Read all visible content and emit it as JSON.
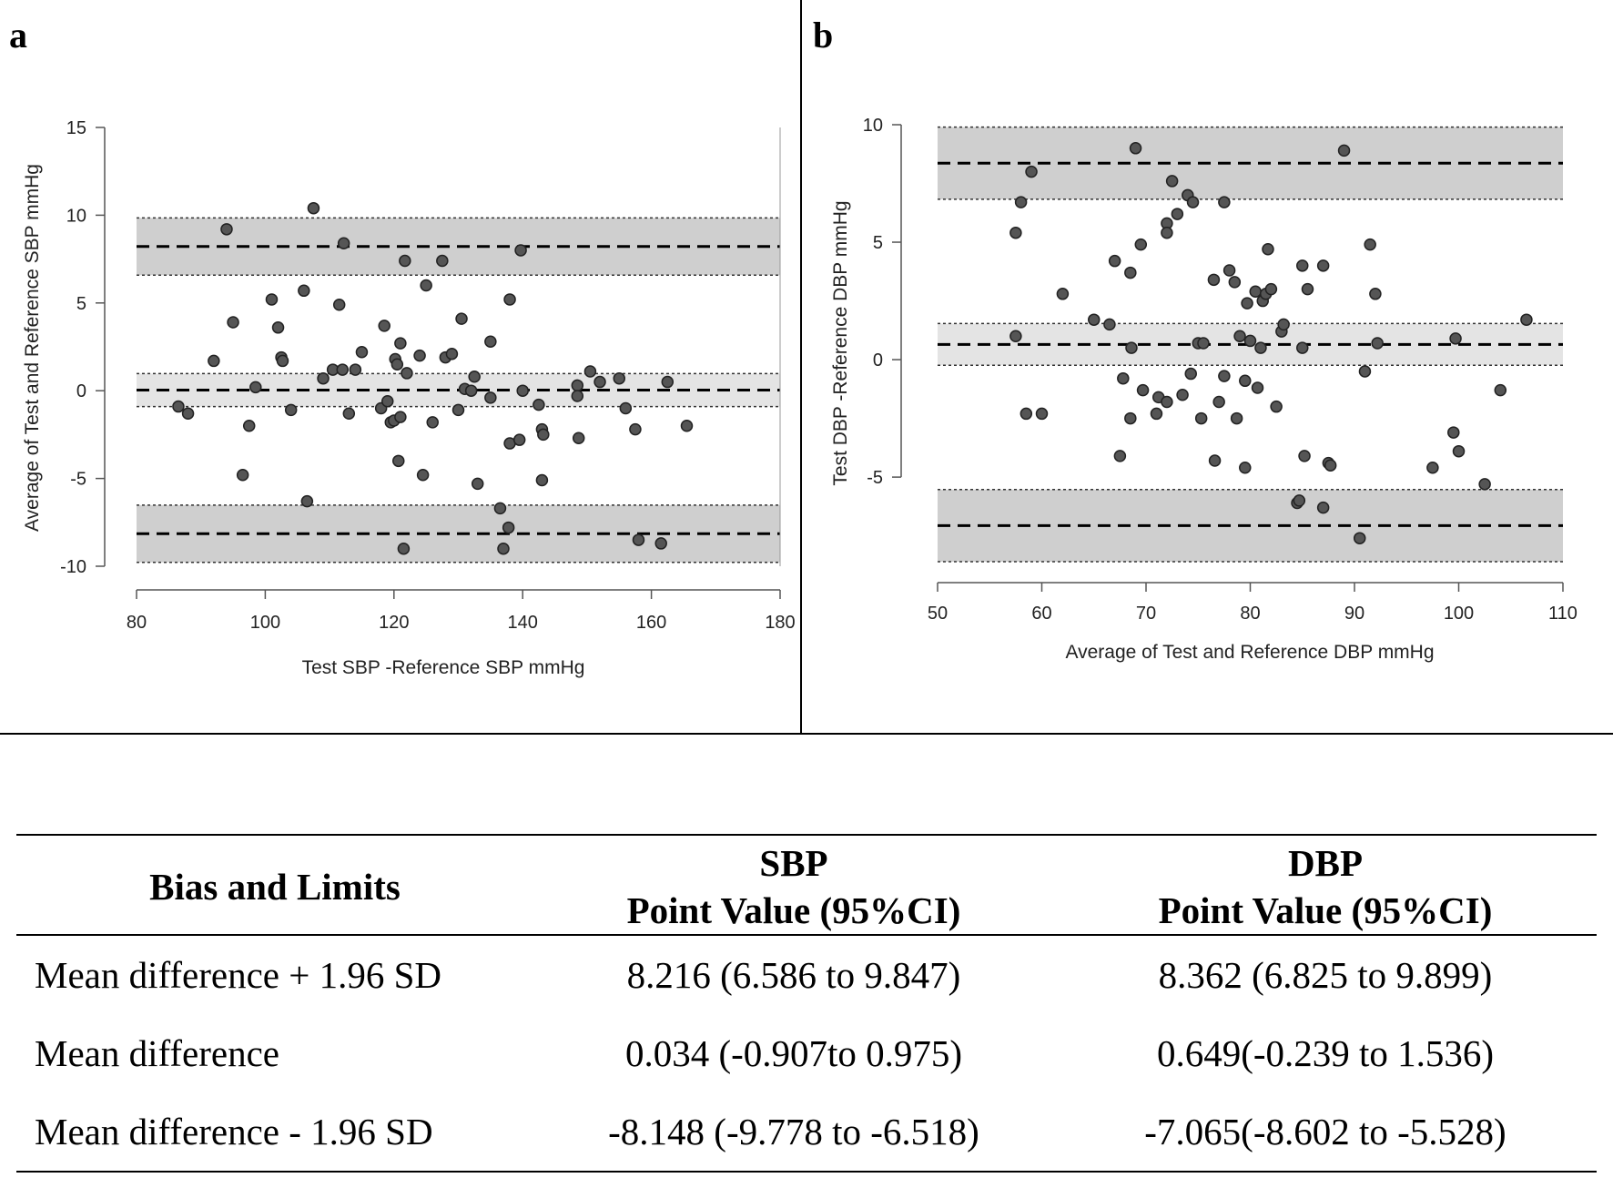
{
  "panels": [
    "a",
    "b"
  ],
  "chart_data": [
    {
      "type": "scatter",
      "panel": "a",
      "xlabel": "Test SBP -Reference SBP mmHg",
      "ylabel": "Average of Test  and Reference SBP mmHg",
      "xlim": [
        80,
        180
      ],
      "ylim": [
        -10,
        15
      ],
      "xticks": [
        80,
        100,
        120,
        140,
        160,
        180
      ],
      "yticks": [
        -10,
        -5,
        0,
        5,
        10,
        15
      ],
      "bias": {
        "mean": 0.034,
        "ci": [
          -0.907,
          0.975
        ]
      },
      "upper_limit": {
        "value": 8.216,
        "ci": [
          6.586,
          9.847
        ]
      },
      "lower_limit": {
        "value": -8.148,
        "ci": [
          -9.778,
          -6.518
        ]
      },
      "points": [
        [
          86.5,
          -0.9
        ],
        [
          88,
          -1.3
        ],
        [
          92,
          1.7
        ],
        [
          94,
          9.2
        ],
        [
          95,
          3.9
        ],
        [
          96.5,
          -4.8
        ],
        [
          97.5,
          -2
        ],
        [
          98.5,
          0.2
        ],
        [
          101,
          5.2
        ],
        [
          102,
          3.6
        ],
        [
          102.5,
          1.9
        ],
        [
          102.7,
          1.7
        ],
        [
          104,
          -1.1
        ],
        [
          106,
          5.7
        ],
        [
          106.5,
          -6.3
        ],
        [
          107.5,
          10.4
        ],
        [
          109,
          0.7
        ],
        [
          110.5,
          1.2
        ],
        [
          111.5,
          4.9
        ],
        [
          112,
          1.2
        ],
        [
          112.2,
          8.4
        ],
        [
          113,
          -1.3
        ],
        [
          114,
          1.2
        ],
        [
          115,
          2.2
        ],
        [
          118,
          -1
        ],
        [
          118.5,
          3.7
        ],
        [
          119,
          -0.6
        ],
        [
          119.5,
          -1.8
        ],
        [
          120,
          -1.7
        ],
        [
          120.2,
          1.8
        ],
        [
          120.5,
          1.5
        ],
        [
          120.7,
          -4
        ],
        [
          121,
          2.7
        ],
        [
          121,
          -1.5
        ],
        [
          121.5,
          -9
        ],
        [
          121.7,
          7.4
        ],
        [
          122,
          1
        ],
        [
          124,
          2
        ],
        [
          124.5,
          -4.8
        ],
        [
          125,
          6
        ],
        [
          126,
          -1.8
        ],
        [
          127.5,
          7.4
        ],
        [
          128,
          1.9
        ],
        [
          129,
          2.1
        ],
        [
          130,
          -1.1
        ],
        [
          130.5,
          4.1
        ],
        [
          131,
          0.1
        ],
        [
          132,
          0
        ],
        [
          132.5,
          0.8
        ],
        [
          133,
          -5.3
        ],
        [
          135,
          2.8
        ],
        [
          135,
          -0.4
        ],
        [
          136.5,
          -6.7
        ],
        [
          137,
          -9
        ],
        [
          137.8,
          -7.8
        ],
        [
          138,
          5.2
        ],
        [
          138,
          -3
        ],
        [
          139.5,
          -2.8
        ],
        [
          139.7,
          8
        ],
        [
          140,
          0
        ],
        [
          142.5,
          -0.8
        ],
        [
          143,
          -5.1
        ],
        [
          143,
          -2.2
        ],
        [
          143.2,
          -2.5
        ],
        [
          148.5,
          0.3
        ],
        [
          148.5,
          -0.3
        ],
        [
          148.7,
          -2.7
        ],
        [
          150.5,
          1.1
        ],
        [
          152,
          0.5
        ],
        [
          155,
          0.7
        ],
        [
          156,
          -1
        ],
        [
          157.5,
          -2.2
        ],
        [
          158,
          -8.5
        ],
        [
          161.5,
          -8.7
        ],
        [
          162.5,
          0.5
        ],
        [
          165.5,
          -2
        ]
      ]
    },
    {
      "type": "scatter",
      "panel": "b",
      "xlabel": "Average of Test  and Reference DBP mmHg",
      "ylabel": "Test DBP -Reference DBP mmHg",
      "xlim": [
        50,
        110
      ],
      "ylim": [
        -8.6,
        10
      ],
      "xticks": [
        50,
        60,
        70,
        80,
        90,
        100,
        110
      ],
      "yticks": [
        -5,
        0,
        5,
        10
      ],
      "bias": {
        "mean": 0.649,
        "ci": [
          -0.239,
          1.536
        ]
      },
      "upper_limit": {
        "value": 8.362,
        "ci": [
          6.825,
          9.899
        ]
      },
      "lower_limit": {
        "value": -7.065,
        "ci": [
          -8.602,
          -5.528
        ]
      },
      "points": [
        [
          57.5,
          5.4
        ],
        [
          57.5,
          1
        ],
        [
          58,
          6.7
        ],
        [
          58.5,
          -2.3
        ],
        [
          59,
          8
        ],
        [
          60,
          -2.3
        ],
        [
          62,
          2.8
        ],
        [
          65,
          1.7
        ],
        [
          66.5,
          1.5
        ],
        [
          67,
          4.2
        ],
        [
          67.5,
          -4.1
        ],
        [
          67.8,
          -0.8
        ],
        [
          68.5,
          -2.5
        ],
        [
          68.5,
          3.7
        ],
        [
          68.6,
          0.5
        ],
        [
          69,
          9
        ],
        [
          69.5,
          4.9
        ],
        [
          69.7,
          -1.3
        ],
        [
          71,
          -2.3
        ],
        [
          71.2,
          -1.6
        ],
        [
          72,
          5.8
        ],
        [
          72,
          -1.8
        ],
        [
          72,
          5.4
        ],
        [
          72.5,
          7.6
        ],
        [
          73,
          6.2
        ],
        [
          73.5,
          -1.5
        ],
        [
          74,
          7
        ],
        [
          74.3,
          -0.6
        ],
        [
          74.5,
          6.7
        ],
        [
          75,
          0.7
        ],
        [
          75.3,
          -2.5
        ],
        [
          75.5,
          0.7
        ],
        [
          76.5,
          3.4
        ],
        [
          76.6,
          -4.3
        ],
        [
          77,
          -1.8
        ],
        [
          77.5,
          6.7
        ],
        [
          77.5,
          -0.7
        ],
        [
          78,
          3.8
        ],
        [
          78.5,
          3.3
        ],
        [
          78.7,
          -2.5
        ],
        [
          79,
          1
        ],
        [
          79.5,
          -0.9
        ],
        [
          79.5,
          -4.6
        ],
        [
          79.7,
          2.4
        ],
        [
          80,
          0.8
        ],
        [
          80.5,
          2.9
        ],
        [
          80.7,
          -1.2
        ],
        [
          81,
          0.5
        ],
        [
          81.2,
          2.5
        ],
        [
          81.5,
          2.8
        ],
        [
          81.7,
          4.7
        ],
        [
          82,
          3
        ],
        [
          82.5,
          -2
        ],
        [
          83,
          1.2
        ],
        [
          83.2,
          1.5
        ],
        [
          84.5,
          -6.1
        ],
        [
          84.7,
          -6
        ],
        [
          85,
          4
        ],
        [
          85,
          0.5
        ],
        [
          85.2,
          -4.1
        ],
        [
          85.5,
          3
        ],
        [
          87,
          4
        ],
        [
          87,
          -6.3
        ],
        [
          87.5,
          -4.4
        ],
        [
          87.7,
          -4.5
        ],
        [
          89,
          8.9
        ],
        [
          90.5,
          -7.6
        ],
        [
          91,
          -0.5
        ],
        [
          91.5,
          4.9
        ],
        [
          92,
          2.8
        ],
        [
          92.2,
          0.7
        ],
        [
          97.5,
          -4.6
        ],
        [
          99.5,
          -3.1
        ],
        [
          99.7,
          0.9
        ],
        [
          100,
          -3.9
        ],
        [
          102.5,
          -5.3
        ],
        [
          104,
          -1.3
        ],
        [
          106.5,
          1.7
        ]
      ]
    }
  ],
  "table": {
    "col1_header": "Bias and Limits",
    "col2_header_line1": "SBP",
    "col2_header_line2": "Point Value (95%CI)",
    "col3_header_line1": "DBP",
    "col3_header_line2": "Point Value (95%CI)",
    "rows": [
      {
        "label": "Mean difference + 1.96 SD",
        "sbp": "8.216 (6.586 to 9.847)",
        "dbp": "8.362 (6.825 to 9.899)"
      },
      {
        "label": "Mean difference",
        "sbp": "0.034 (-0.907to 0.975)",
        "dbp": "0.649(-0.239 to 1.536)"
      },
      {
        "label": "Mean difference - 1.96 SD",
        "sbp": "-8.148 (-9.778 to -6.518)",
        "dbp": "-7.065(-8.602 to -5.528)"
      }
    ]
  }
}
